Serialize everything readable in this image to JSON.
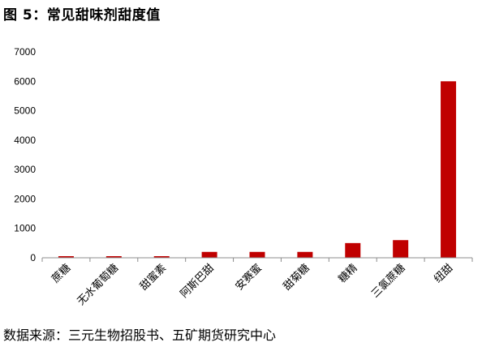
{
  "figure": {
    "title": "图 5：常见甜味剂甜度值",
    "source": "数据来源：三元生物招股书、五矿期货研究中心"
  },
  "chart_data": {
    "type": "bar",
    "categories": [
      "蔗糖",
      "无水葡萄糖",
      "甜蜜素",
      "阿斯巴甜",
      "安赛蜜",
      "甜菊糖",
      "糖精",
      "三氯蔗糖",
      "纽甜"
    ],
    "values": [
      1,
      1,
      1,
      200,
      200,
      200,
      500,
      600,
      6000
    ],
    "ylim": [
      0,
      7000
    ],
    "yticks": [
      0,
      1000,
      2000,
      3000,
      4000,
      5000,
      6000,
      7000
    ],
    "bar_color": "#c00000",
    "grid": false,
    "legend": "none"
  }
}
